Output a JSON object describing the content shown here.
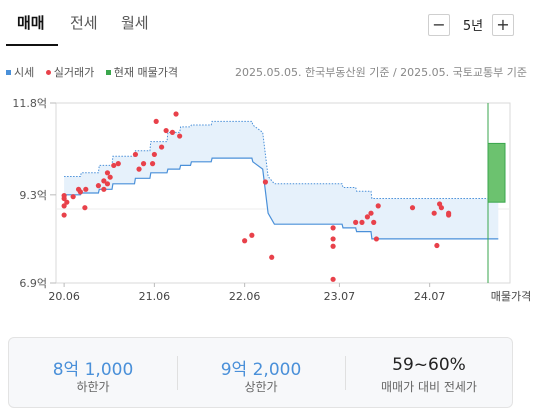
{
  "tabs": [
    {
      "label": "매매",
      "active": true
    },
    {
      "label": "전세",
      "active": false
    },
    {
      "label": "월세",
      "active": false
    }
  ],
  "period": {
    "minus": "−",
    "value": "5년",
    "plus": "+"
  },
  "legend": [
    {
      "label": "시세",
      "color": "#4a90d9"
    },
    {
      "label": "실거래가",
      "color": "#e8414a"
    },
    {
      "label": "현재 매물가격",
      "color": "#3aa64c"
    }
  ],
  "source_note": "2025.05.05. 한국부동산원 기준 / 2025.05. 국토교통부 기준",
  "chart_data": {
    "type": "scatter",
    "y_unit": "억",
    "ylim": [
      6.9,
      11.8
    ],
    "y_ticks": [
      "11.8억",
      "9.3억",
      "6.9억"
    ],
    "x_ticks": [
      "20.06",
      "21.06",
      "22.06",
      "23.07",
      "24.07"
    ],
    "x_extra_label": "매물가격",
    "xlim": [
      2020.33,
      2025.36
    ],
    "grid": true,
    "colors": {
      "band_fill": "#e6f1fb",
      "band_stroke": "#4a90d9",
      "deal": "#e8414a",
      "listing": "#3aa64c"
    },
    "series": [
      {
        "name": "시세",
        "x": [
          2020.42,
          2020.6,
          2020.61,
          2020.8,
          2020.81,
          2020.95,
          2020.96,
          2021.2,
          2021.21,
          2021.37,
          2021.38,
          2021.56,
          2021.57,
          2021.7,
          2021.71,
          2021.82,
          2021.83,
          2022.05,
          2022.06,
          2022.5,
          2022.51,
          2022.62,
          2022.68,
          2022.75,
          2023.3,
          2023.5,
          2023.51,
          2023.65,
          2023.66,
          2023.82,
          2023.83,
          2024.2,
          2024.21,
          2025.23
        ],
        "low": [
          9.3,
          9.3,
          9.35,
          9.35,
          9.45,
          9.45,
          9.6,
          9.6,
          9.75,
          9.75,
          9.9,
          9.9,
          10.0,
          10.0,
          10.1,
          10.1,
          10.2,
          10.2,
          10.3,
          10.3,
          10.2,
          10.0,
          8.8,
          8.5,
          8.5,
          8.5,
          8.4,
          8.4,
          8.3,
          8.3,
          8.1,
          8.1,
          8.1,
          8.1
        ],
        "high": [
          9.8,
          9.8,
          9.9,
          9.9,
          10.1,
          10.1,
          10.35,
          10.35,
          10.5,
          10.5,
          10.75,
          10.75,
          11.0,
          11.0,
          11.15,
          11.15,
          11.2,
          11.2,
          11.3,
          11.3,
          11.2,
          11.0,
          9.8,
          9.6,
          9.6,
          9.6,
          9.5,
          9.5,
          9.4,
          9.4,
          9.2,
          9.2,
          9.2,
          9.2
        ]
      },
      {
        "name": "실거래가",
        "points": [
          [
            2020.42,
            9.28
          ],
          [
            2020.42,
            9.2
          ],
          [
            2020.42,
            9.0
          ],
          [
            2020.42,
            8.75
          ],
          [
            2020.45,
            9.1
          ],
          [
            2020.52,
            9.25
          ],
          [
            2020.58,
            9.45
          ],
          [
            2020.6,
            9.38
          ],
          [
            2020.65,
            8.95
          ],
          [
            2020.66,
            9.45
          ],
          [
            2020.8,
            9.55
          ],
          [
            2020.86,
            9.45
          ],
          [
            2020.86,
            9.68
          ],
          [
            2020.9,
            9.9
          ],
          [
            2020.9,
            9.6
          ],
          [
            2020.93,
            9.78
          ],
          [
            2020.97,
            10.1
          ],
          [
            2021.02,
            10.15
          ],
          [
            2021.21,
            10.4
          ],
          [
            2021.25,
            10.0
          ],
          [
            2021.3,
            10.15
          ],
          [
            2021.4,
            10.15
          ],
          [
            2021.42,
            10.4
          ],
          [
            2021.44,
            11.3
          ],
          [
            2021.5,
            10.6
          ],
          [
            2021.55,
            11.05
          ],
          [
            2021.62,
            11.0
          ],
          [
            2021.66,
            11.5
          ],
          [
            2021.7,
            10.9
          ],
          [
            2022.42,
            8.05
          ],
          [
            2022.5,
            8.2
          ],
          [
            2022.65,
            9.65
          ],
          [
            2022.72,
            7.6
          ],
          [
            2023.4,
            8.4
          ],
          [
            2023.4,
            8.1
          ],
          [
            2023.4,
            7.9
          ],
          [
            2023.4,
            7.0
          ],
          [
            2023.65,
            8.55
          ],
          [
            2023.72,
            8.55
          ],
          [
            2023.78,
            8.7
          ],
          [
            2023.82,
            8.8
          ],
          [
            2023.85,
            8.55
          ],
          [
            2023.88,
            8.1
          ],
          [
            2023.9,
            9.0
          ],
          [
            2024.28,
            8.95
          ],
          [
            2024.52,
            8.8
          ],
          [
            2024.55,
            7.92
          ],
          [
            2024.58,
            9.05
          ],
          [
            2024.6,
            8.95
          ],
          [
            2024.68,
            8.75
          ],
          [
            2024.68,
            8.8
          ]
        ]
      },
      {
        "name": "현재 매물가격",
        "x": 2025.36,
        "low": 9.1,
        "high": 10.7
      }
    ]
  },
  "summary": [
    {
      "value": "8억 1,000",
      "label": "하한가",
      "accent": true
    },
    {
      "value": "9억 2,000",
      "label": "상한가",
      "accent": true
    },
    {
      "value": "59~60%",
      "label": "매매가 대비 전세가",
      "accent": false
    }
  ]
}
